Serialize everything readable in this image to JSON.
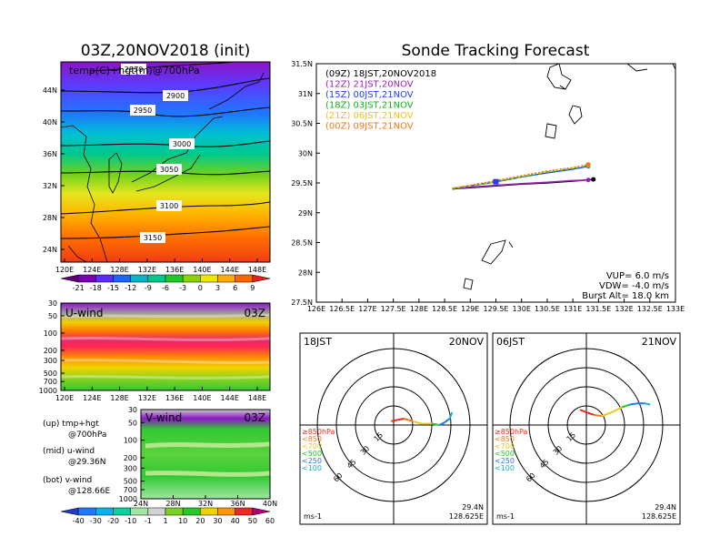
{
  "colors": {
    "run_09z": "#000000",
    "run_12z": "#9b1fb6",
    "run_15z": "#1e3cff",
    "run_18z": "#13b01c",
    "run_21z": "#f2c21a",
    "run_00z": "#f07818",
    "temp_scale": [
      "#5a0078",
      "#7a00b4",
      "#5a2cff",
      "#1e64ff",
      "#00b4c8",
      "#00c88c",
      "#1ec828",
      "#8cd200",
      "#f0e600",
      "#ffaa00",
      "#ff6400",
      "#e61e1e"
    ],
    "wind_scale": [
      "#1e3cc8",
      "#1e78ff",
      "#00b4f0",
      "#00d2a0",
      "#a0e6a0",
      "#d2d2d2",
      "#7ad21e",
      "#28c828",
      "#f0d200",
      "#ff9600",
      "#f02828",
      "#b40078"
    ]
  },
  "left_top": {
    "title": "03Z,20NOV2018 (init)",
    "overlay_label": "temp(C)+hgt(m)@700hPa",
    "contour_labels": [
      "2850",
      "2900",
      "2950",
      "3000",
      "3050",
      "3100",
      "3150"
    ],
    "lat_ticks": [
      "44N",
      "40N",
      "36N",
      "32N",
      "28N",
      "24N"
    ],
    "lon_ticks": [
      "120E",
      "124E",
      "128E",
      "132E",
      "136E",
      "140E",
      "144E",
      "148E"
    ],
    "colorbar_labels": [
      "-21",
      "-18",
      "-15",
      "-12",
      "-9",
      "-6",
      "-3",
      "0",
      "3",
      "6",
      "9"
    ]
  },
  "left_mid": {
    "label": "U-wind",
    "time": "03Z",
    "p_ticks": [
      "30",
      "50",
      "100",
      "200",
      "300",
      "500",
      "700",
      "1000"
    ],
    "lon_ticks": [
      "120E",
      "124E",
      "128E",
      "132E",
      "136E",
      "140E",
      "144E",
      "148E"
    ]
  },
  "left_bot": {
    "label": "V-wind",
    "time": "03Z",
    "p_ticks": [
      "30",
      "50",
      "100",
      "200",
      "300",
      "500",
      "700",
      "1000"
    ],
    "lat_ticks": [
      "24N",
      "28N",
      "32N",
      "36N",
      "40N"
    ],
    "colorbar_labels": [
      "-40",
      "-30",
      "-20",
      "-10",
      "-1",
      "1",
      "10",
      "20",
      "30",
      "40",
      "50",
      "60"
    ]
  },
  "notes": {
    "line1": "(up) tmp+hgt",
    "line2": "@700hPa",
    "line3": "(mid) u-wind",
    "line4": "@29.36N",
    "line5": "(bot) v-wind",
    "line6": "@128.66E"
  },
  "track": {
    "title": "Sonde Tracking Forecast",
    "legend": [
      {
        "label": "(09Z)  18JST,20NOV2018",
        "color": "#000000"
      },
      {
        "label": "(12Z)  21JST,20NOV",
        "color": "#9b1fb6"
      },
      {
        "label": "(15Z)  00JST,21NOV",
        "color": "#1e3cff"
      },
      {
        "label": "(18Z)  03JST,21NOV",
        "color": "#13b01c"
      },
      {
        "label": "(21Z)  06JST,21NOV",
        "color": "#f2c21a"
      },
      {
        "label": "(00Z)  09JST,21NOV",
        "color": "#f07818"
      }
    ],
    "lat_ticks": [
      "31.5N",
      "31N",
      "30.5N",
      "30N",
      "29.5N",
      "29N",
      "28.5N",
      "28N",
      "27.5N"
    ],
    "lon_ticks": [
      "126E",
      "126.5E",
      "127E",
      "127.5E",
      "128E",
      "128.5E",
      "129E",
      "129.5E",
      "130E",
      "130.5E",
      "131E",
      "131.5E",
      "132E",
      "132.5E",
      "133E"
    ],
    "vup": "VUP=  6.0  m/s",
    "vdw": "VDW= -4.0  m/s",
    "burst": "Burst Alt=  18.0  km"
  },
  "chart_data": [
    {
      "type": "line",
      "title": "Sonde Tracking Forecast",
      "xlim": [
        126,
        133
      ],
      "ylim": [
        27.5,
        31.5
      ],
      "series": [
        {
          "name": "(09Z)  18JST,20NOV2018",
          "x": [
            128.65,
            129.0,
            129.5,
            130.0,
            130.5,
            131.0,
            131.4
          ],
          "y": [
            29.4,
            29.42,
            29.45,
            29.48,
            29.5,
            29.53,
            29.56
          ]
        },
        {
          "name": "(12Z)  21JST,20NOV",
          "x": [
            128.65,
            129.0,
            129.5,
            130.0,
            130.5,
            131.0,
            131.3
          ],
          "y": [
            29.4,
            29.43,
            29.46,
            29.49,
            29.51,
            29.54,
            29.55
          ]
        },
        {
          "name": "(15Z)  00JST,21NOV",
          "x": [
            128.65,
            129.0,
            129.5,
            130.0,
            130.5,
            131.0,
            131.3
          ],
          "y": [
            29.4,
            29.45,
            29.52,
            29.6,
            29.67,
            29.73,
            29.78
          ]
        },
        {
          "name": "(18Z)  03JST,21NOV",
          "x": [
            128.65,
            129.0,
            129.5,
            130.0,
            130.5,
            131.0,
            131.3
          ],
          "y": [
            29.41,
            29.45,
            29.52,
            29.6,
            29.68,
            29.74,
            29.79
          ]
        },
        {
          "name": "(21Z)  06JST,21NOV",
          "x": [
            128.65,
            129.0,
            129.5,
            130.0,
            130.5,
            131.0,
            131.3
          ],
          "y": [
            29.41,
            29.45,
            29.53,
            29.61,
            29.69,
            29.75,
            29.8
          ]
        },
        {
          "name": "(00Z)  09JST,21NOV",
          "x": [
            128.65,
            129.0,
            129.5,
            130.0,
            130.5,
            131.0,
            131.3
          ],
          "y": [
            29.41,
            29.46,
            29.54,
            29.62,
            29.7,
            29.76,
            29.81
          ]
        }
      ]
    },
    {
      "type": "scatter",
      "title": "18JST 20NOV",
      "header_left": "18JST",
      "header_right": "20NOV",
      "center_lat": "29.4N",
      "center_lon": "128.625E",
      "unit": "ms-1",
      "ring_labels": [
        "15",
        "30",
        "45",
        "60"
      ],
      "layer_labels": [
        "≥850hPa",
        "<850",
        "<700",
        "<500",
        "<250",
        "<100"
      ],
      "layer_colors": [
        "#f0281e",
        "#f07818",
        "#e6c81e",
        "#1ec828",
        "#1e78ff",
        "#14b4c8"
      ],
      "hodograph_u": [
        -2,
        3,
        8,
        15,
        22,
        30,
        36,
        40,
        44,
        46
      ],
      "hodograph_v": [
        3,
        4,
        5,
        3,
        1,
        1,
        0,
        2,
        5,
        10
      ]
    },
    {
      "type": "scatter",
      "title": "06JST 21NOV",
      "header_left": "06JST",
      "header_right": "21NOV",
      "center_lat": "29.4N",
      "center_lon": "128.625E",
      "unit": "ms-1",
      "ring_labels": [
        "15",
        "30",
        "45",
        "60"
      ],
      "layer_labels": [
        "≥850hPa",
        "<850",
        "<700",
        "<500",
        "<250",
        "<100"
      ],
      "layer_colors": [
        "#f0281e",
        "#f07818",
        "#e6c81e",
        "#1ec828",
        "#1e78ff",
        "#14b4c8"
      ],
      "hodograph_u": [
        -5,
        0,
        6,
        12,
        20,
        28,
        34,
        40,
        46,
        50
      ],
      "hodograph_v": [
        12,
        10,
        8,
        7,
        10,
        14,
        16,
        17,
        17,
        16
      ]
    }
  ]
}
